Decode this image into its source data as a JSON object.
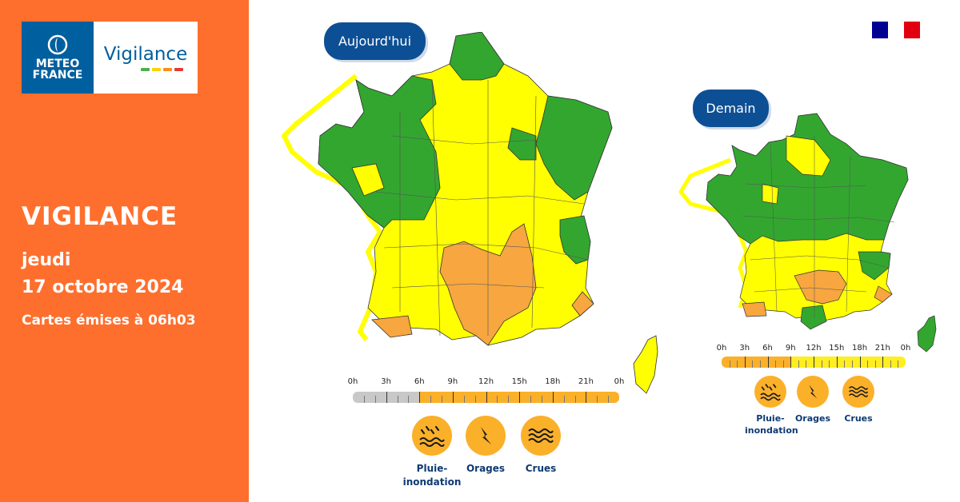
{
  "brand": {
    "mf_line1": "METEO",
    "mf_line2": "FRANCE",
    "vigilance_word": "Vigilance",
    "bar_colors": [
      "#4caf50",
      "#ffd200",
      "#ff8c1a",
      "#e53935"
    ]
  },
  "headline": {
    "title": "VIGILANCE",
    "day": "jeudi",
    "date": "17 octobre 2024",
    "issued": "Cartes émises à 06h03"
  },
  "colors": {
    "panel": "#fe6f2d",
    "accent_blue": "#0d4f94",
    "vigilance_green": "#33a630",
    "vigilance_yellow": "#ffff00",
    "vigilance_orange": "#f7a640",
    "timeline_grey": "#c8c8c8",
    "timeline_orange": "#fbb02a",
    "timeline_yellow": "#ffee22"
  },
  "today": {
    "label": "Aujourd'hui",
    "timeline_ticks": [
      "0h",
      "3h",
      "6h",
      "9h",
      "12h",
      "15h",
      "18h",
      "21h",
      "0h"
    ],
    "timeline_past_fraction": 0.25,
    "phenomena": [
      {
        "icon": "rain-flood-icon",
        "label_l1": "Pluie-",
        "label_l2": "inondation"
      },
      {
        "icon": "thunderstorm-icon",
        "label_l1": "Orages",
        "label_l2": ""
      },
      {
        "icon": "flood-waves-icon",
        "label_l1": "Crues",
        "label_l2": ""
      }
    ]
  },
  "tomorrow": {
    "label": "Demain",
    "timeline_ticks": [
      "0h",
      "3h",
      "6h",
      "9h",
      "12h",
      "15h",
      "18h",
      "21h",
      "0h"
    ],
    "timeline_orange_fraction": 0.375,
    "phenomena": [
      {
        "icon": "rain-flood-icon",
        "label_l1": "Pluie-",
        "label_l2": "inondation"
      },
      {
        "icon": "thunderstorm-icon",
        "label_l1": "Orages",
        "label_l2": ""
      },
      {
        "icon": "flood-waves-icon",
        "label_l1": "Crues",
        "label_l2": ""
      }
    ]
  }
}
